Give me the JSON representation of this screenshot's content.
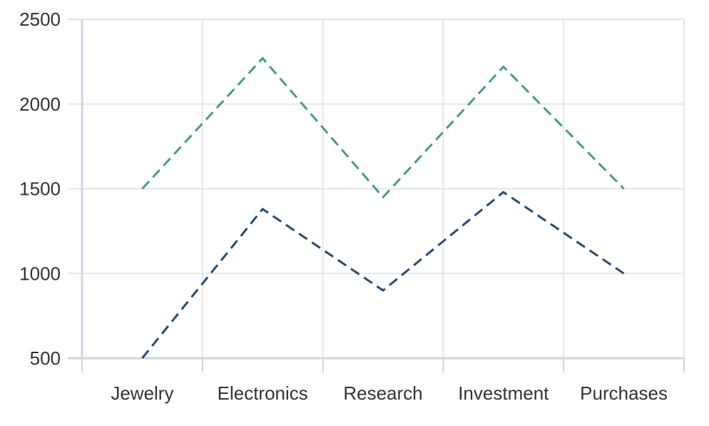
{
  "chart_data": {
    "type": "line",
    "categories": [
      "Jewelry",
      "Electronics",
      "Research",
      "Investment",
      "Purchases"
    ],
    "series": [
      {
        "values": [
          1500,
          2270,
          1450,
          2220,
          1500
        ],
        "color": "#4a9a8a",
        "dash": "dashed"
      },
      {
        "values": [
          500,
          1380,
          900,
          1480,
          1000
        ],
        "color": "#2c4a6e",
        "dash": "dashed"
      }
    ],
    "ylim": [
      500,
      2500
    ],
    "yticks": [
      500,
      1000,
      1500,
      2000,
      2500
    ],
    "xlabel": "",
    "ylabel": "",
    "grid": true,
    "colors": {
      "grid": "#e6e6e6",
      "axis": "#cfd6de",
      "text": "#333333"
    }
  }
}
